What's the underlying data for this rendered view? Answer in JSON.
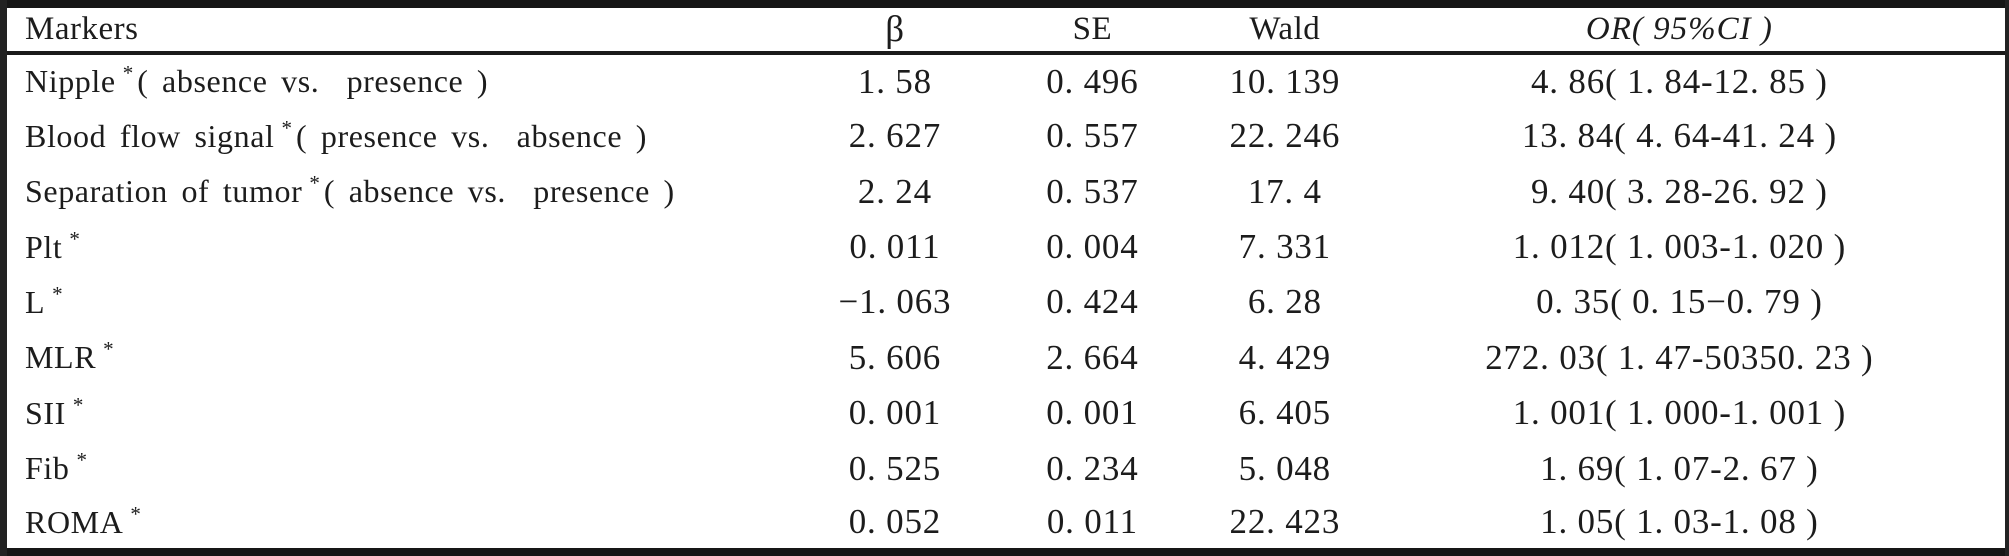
{
  "table": {
    "headers": {
      "markers": "Markers",
      "beta": "β",
      "se": "SE",
      "wald": "Wald",
      "or": "OR( 95%CI )"
    },
    "rows": [
      {
        "name": "Nipple",
        "star": "*",
        "cond": "( absence vs.  presence )",
        "beta": "1. 58",
        "se": "0. 496",
        "wald": "10. 139",
        "or": "4. 86( 1. 84-12. 85 )"
      },
      {
        "name": "Blood flow signal",
        "star": "*",
        "cond": "( presence vs.  absence )",
        "beta": "2. 627",
        "se": "0. 557",
        "wald": "22. 246",
        "or": "13. 84( 4. 64-41. 24 )"
      },
      {
        "name": "Separation of tumor",
        "star": "*",
        "cond": "( absence vs.  presence )",
        "beta": "2. 24",
        "se": "0. 537",
        "wald": "17. 4",
        "or": "9. 40( 3. 28-26. 92 )"
      },
      {
        "name": "Plt",
        "star": "*",
        "cond": "",
        "beta": "0. 011",
        "se": "0. 004",
        "wald": "7. 331",
        "or": "1. 012( 1. 003-1. 020 )"
      },
      {
        "name": "L",
        "star": "*",
        "cond": "",
        "beta": "−1. 063",
        "se": "0. 424",
        "wald": "6. 28",
        "or": "0. 35( 0. 15−0. 79 )"
      },
      {
        "name": "MLR",
        "star": "*",
        "cond": "",
        "beta": "5. 606",
        "se": "2. 664",
        "wald": "4. 429",
        "or": "272. 03( 1. 47-50350. 23 )"
      },
      {
        "name": "SII",
        "star": "*",
        "cond": "",
        "beta": "0. 001",
        "se": "0. 001",
        "wald": "6. 405",
        "or": "1. 001( 1. 000-1. 001 )"
      },
      {
        "name": "Fib",
        "star": "*",
        "cond": "",
        "beta": "0. 525",
        "se": "0. 234",
        "wald": "5. 048",
        "or": "1. 69( 1. 07-2. 67 )"
      },
      {
        "name": "ROMA",
        "star": "*",
        "cond": "",
        "beta": "0. 052",
        "se": "0. 011",
        "wald": "22. 423",
        "or": "1. 05( 1. 03-1. 08 )"
      }
    ]
  },
  "colors": {
    "rule": "#161616",
    "text": "#1c1c1c",
    "background": "#ffffff",
    "scan_edge": "#222222"
  }
}
